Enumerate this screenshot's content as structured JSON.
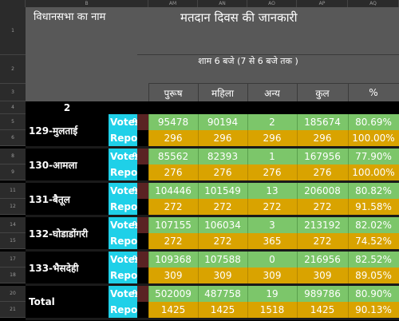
{
  "columns": [
    "B",
    "AM",
    "AN",
    "AO",
    "AP",
    "AQ"
  ],
  "row_numbers": [
    "1",
    "2",
    "3",
    "4",
    "5",
    "6",
    "8",
    "9",
    "11",
    "12",
    "14",
    "15",
    "17",
    "18",
    "20",
    "21"
  ],
  "header": {
    "title": "मतदान दिवस की जानकारी",
    "b_header": "विधानसभा का नाम",
    "time_label": "शाम 6 बजे (7 से 6 बजे तक )",
    "sub_headers": [
      "पुरूष",
      "महिला",
      "अन्य",
      "कुल",
      "%"
    ],
    "row4_value": "2"
  },
  "labels": {
    "votes": "Votes",
    "report": "Repo",
    "pct_sign": "%"
  },
  "rows": [
    {
      "name": "129-मुलताई",
      "votes": [
        "95478",
        "90194",
        "2",
        "185674",
        "80.69%"
      ],
      "report": [
        "296",
        "296",
        "296",
        "296",
        "100.00%"
      ]
    },
    {
      "name": "130-आमला",
      "votes": [
        "85562",
        "82393",
        "1",
        "167956",
        "77.90%"
      ],
      "report": [
        "276",
        "276",
        "276",
        "276",
        "100.00%"
      ]
    },
    {
      "name": "131-बैतूल",
      "votes": [
        "104446",
        "101549",
        "13",
        "206008",
        "80.82%"
      ],
      "report": [
        "272",
        "272",
        "272",
        "272",
        "91.58%"
      ]
    },
    {
      "name": "132-घोडाडोंगरी",
      "votes": [
        "107155",
        "106034",
        "3",
        "213192",
        "82.02%"
      ],
      "report": [
        "272",
        "272",
        "365",
        "272",
        "74.52%"
      ]
    },
    {
      "name": "133-भैसदेही",
      "votes": [
        "109368",
        "107588",
        "0",
        "216956",
        "82.52%"
      ],
      "report": [
        "309",
        "309",
        "309",
        "309",
        "89.05%"
      ]
    },
    {
      "name": "Total",
      "votes": [
        "502009",
        "487758",
        "19",
        "989786",
        "80.90%"
      ],
      "report": [
        "1425",
        "1425",
        "1518",
        "1425",
        "90.13%"
      ]
    }
  ]
}
